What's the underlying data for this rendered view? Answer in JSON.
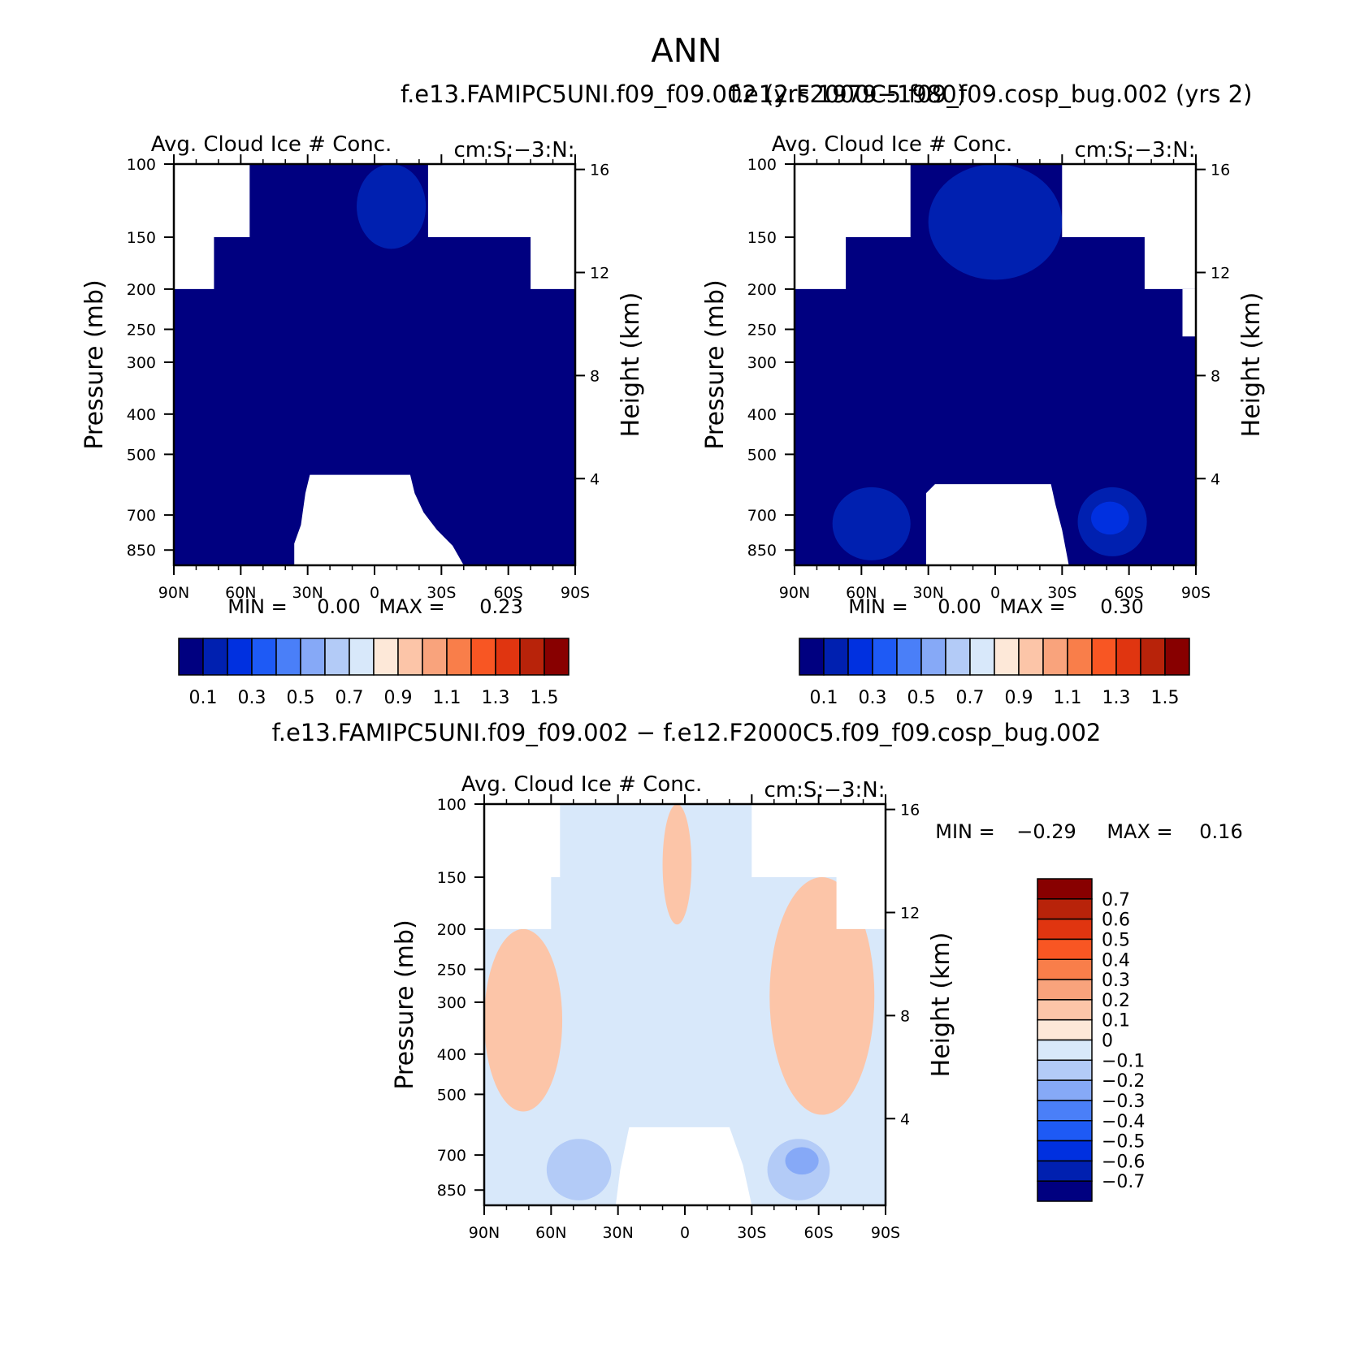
{
  "page_title": "ANN",
  "colors": {
    "cbar_main": [
      "#000080",
      "#0020b0",
      "#0030e0",
      "#1e5af5",
      "#4a7ff8",
      "#86a9f7",
      "#b3cbf7",
      "#d8e8fa",
      "#fde8d8",
      "#fcc5a8",
      "#f9a37c",
      "#f97e4a",
      "#f85623",
      "#e03510",
      "#b8230a",
      "#880000"
    ],
    "cbar_diff": [
      "#000080",
      "#0020b0",
      "#0030e0",
      "#1e5af5",
      "#4a7ff8",
      "#86a9f7",
      "#b3cbf7",
      "#d8e8fa",
      "#fde8d8",
      "#fcc5a8",
      "#f9a37c",
      "#f97e4a",
      "#f85623",
      "#e03510",
      "#b8230a",
      "#880000"
    ],
    "mask": "#ffffff"
  },
  "chart_data": [
    {
      "type": "heatmap",
      "id": "panel1",
      "case_title": "f.e13.FAMIPC5UNI.f09_f09.002 (yrs 1979-1980)",
      "title": "Avg. Cloud Ice # Conc.",
      "units": "cm:S:-3:N:",
      "xlabel": "",
      "ylabel": "Pressure (mb)",
      "ylabel_right": "Height (km)",
      "x_ticks": [
        "90N",
        "60N",
        "30N",
        "0",
        "30S",
        "60S",
        "90S"
      ],
      "x_range": [
        90,
        -90
      ],
      "y_ticks": [
        100,
        150,
        200,
        250,
        300,
        400,
        500,
        700,
        850
      ],
      "y_range": [
        100,
        925
      ],
      "height_ticks": [
        16,
        12,
        8,
        4
      ],
      "min_label": "MIN =",
      "min": "0.00",
      "max_label": "MAX =",
      "max": "0.23",
      "colorbar_labels": [
        "0.1",
        "0.3",
        "0.5",
        "0.7",
        "0.9",
        "1.1",
        "1.3",
        "1.5"
      ],
      "colorbar_levels": [
        0.1,
        0.2,
        0.3,
        0.4,
        0.5,
        0.6,
        0.7,
        0.8,
        0.9,
        1.0,
        1.1,
        1.2,
        1.3,
        1.4,
        1.5
      ],
      "features": [
        {
          "kind": "fill",
          "level": 0,
          "desc": "domain-wide values 0-0.1"
        },
        {
          "kind": "blob",
          "level": 1,
          "lat_range": [
            8,
            -23
          ],
          "p_range": [
            100,
            160
          ],
          "desc": "upper tropical max ~0.23"
        }
      ]
    },
    {
      "type": "heatmap",
      "id": "panel2",
      "case_title": "f.e12.F2000C5.f09_f09.cosp_bug.002 (yrs 2)",
      "title": "Avg. Cloud Ice # Conc.",
      "units": "cm:S:-3:N:",
      "xlabel": "",
      "ylabel": "Pressure (mb)",
      "ylabel_right": "Height (km)",
      "x_ticks": [
        "90N",
        "60N",
        "30N",
        "0",
        "30S",
        "60S",
        "90S"
      ],
      "x_range": [
        90,
        -90
      ],
      "y_ticks": [
        100,
        150,
        200,
        250,
        300,
        400,
        500,
        700,
        850
      ],
      "y_range": [
        100,
        925
      ],
      "height_ticks": [
        16,
        12,
        8,
        4
      ],
      "min_label": "MIN =",
      "min": "0.00",
      "max_label": "MAX =",
      "max": "0.30",
      "colorbar_labels": [
        "0.1",
        "0.3",
        "0.5",
        "0.7",
        "0.9",
        "1.1",
        "1.3",
        "1.5"
      ],
      "colorbar_levels": [
        0.1,
        0.2,
        0.3,
        0.4,
        0.5,
        0.6,
        0.7,
        0.8,
        0.9,
        1.0,
        1.1,
        1.2,
        1.3,
        1.4,
        1.5
      ],
      "features": [
        {
          "kind": "fill",
          "level": 0,
          "desc": "domain-wide values 0-0.1"
        },
        {
          "kind": "blob",
          "level": 1,
          "lat_range": [
            30,
            -30
          ],
          "p_range": [
            100,
            190
          ],
          "desc": "upper tropical ice"
        },
        {
          "kind": "blob",
          "level": 1,
          "lat_range": [
            73,
            38
          ],
          "p_range": [
            600,
            900
          ],
          "desc": "NH mid-latitude lower troposphere"
        },
        {
          "kind": "blob",
          "level": 1,
          "lat_range": [
            -37,
            -68
          ],
          "p_range": [
            600,
            880
          ],
          "desc": "SH mid-latitude lower troposphere"
        },
        {
          "kind": "blob",
          "level": 2,
          "lat_range": [
            -43,
            -60
          ],
          "p_range": [
            650,
            780
          ],
          "desc": "SH max ~0.30"
        }
      ]
    },
    {
      "type": "heatmap",
      "id": "panel3",
      "case_title": "f.e13.FAMIPC5UNI.f09_f09.002 - f.e12.F2000C5.f09_f09.cosp_bug.002",
      "title": "Avg. Cloud Ice # Conc.",
      "units": "cm:S:-3:N:",
      "xlabel": "",
      "ylabel": "Pressure (mb)",
      "ylabel_right": "Height (km)",
      "x_ticks": [
        "90N",
        "60N",
        "30N",
        "0",
        "30S",
        "60S",
        "90S"
      ],
      "x_range": [
        90,
        -90
      ],
      "y_ticks": [
        100,
        150,
        200,
        250,
        300,
        400,
        500,
        700,
        850
      ],
      "y_range": [
        100,
        925
      ],
      "height_ticks": [
        16,
        12,
        8,
        4
      ],
      "min_label": "MIN =",
      "min": "-0.29",
      "max_label": "MAX =",
      "max": "0.16",
      "colorbar_labels": [
        "0.7",
        "0.6",
        "0.5",
        "0.4",
        "0.3",
        "0.2",
        "0.1",
        "0",
        "-0.1",
        "-0.2",
        "-0.3",
        "-0.4",
        "-0.5",
        "-0.6",
        "-0.7"
      ],
      "colorbar_levels": [
        -0.7,
        -0.6,
        -0.5,
        -0.4,
        -0.3,
        -0.2,
        -0.1,
        0,
        0.1,
        0.2,
        0.3,
        0.4,
        0.5,
        0.6,
        0.7
      ],
      "features": [
        {
          "kind": "fill",
          "level": -0.1,
          "desc": "domain-wide values -0.1-0"
        },
        {
          "kind": "blob",
          "level": 0.1,
          "lat_range": [
            90,
            55
          ],
          "p_range": [
            200,
            550
          ],
          "desc": "NH high-lat positive"
        },
        {
          "kind": "blob",
          "level": 0.1,
          "lat_range": [
            -38,
            -85
          ],
          "p_range": [
            150,
            560
          ],
          "desc": "SH positive"
        },
        {
          "kind": "blob",
          "level": 0.1,
          "lat_range": [
            10,
            -3
          ],
          "p_range": [
            100,
            195
          ],
          "desc": "tropical upper positive"
        },
        {
          "kind": "blob",
          "level": -0.2,
          "lat_range": [
            62,
            33
          ],
          "p_range": [
            640,
            900
          ],
          "desc": "NH lower negative"
        },
        {
          "kind": "blob",
          "level": -0.2,
          "lat_range": [
            -37,
            -65
          ],
          "p_range": [
            640,
            900
          ],
          "desc": "SH lower negative"
        },
        {
          "kind": "blob",
          "level": -0.3,
          "lat_range": [
            -45,
            -60
          ],
          "p_range": [
            670,
            780
          ],
          "desc": "SH min -0.29"
        }
      ]
    }
  ]
}
